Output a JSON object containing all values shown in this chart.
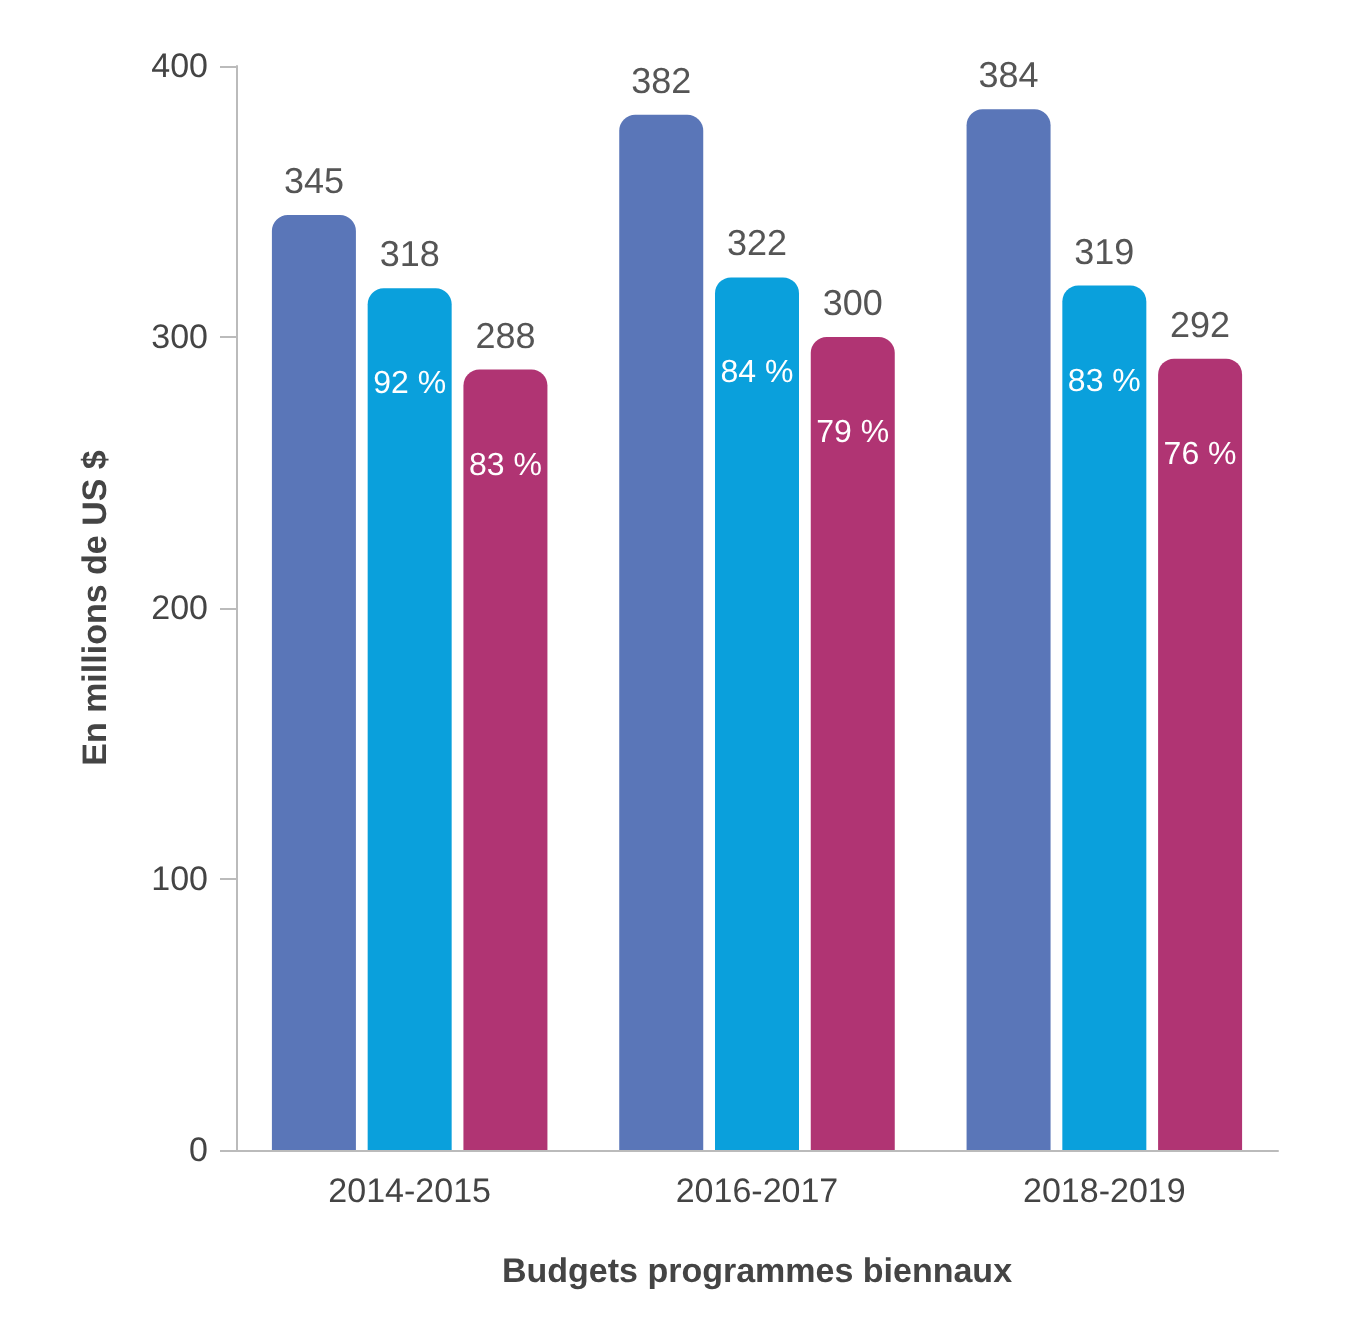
{
  "chart_data": {
    "type": "bar",
    "xlabel": "Budgets programmes biennaux",
    "ylabel": "En millions de US $",
    "categories": [
      "2014-2015",
      "2016-2017",
      "2018-2019"
    ],
    "series": [
      {
        "color": "#5a76b8",
        "values": [
          345,
          382,
          384
        ]
      },
      {
        "color": "#0aa0dc",
        "values": [
          318,
          322,
          319
        ]
      },
      {
        "color": "#b03473",
        "values": [
          288,
          300,
          292
        ]
      }
    ],
    "annotations": [
      {
        "text": "92 %",
        "x": "2014-2015",
        "y": 318
      },
      {
        "text": "84 %",
        "x": "2016-2017",
        "y": 322
      },
      {
        "text": "83 %",
        "x": "2018-2019",
        "y": 319
      },
      "83 %",
      "79 %",
      "76 %"
    ],
    "ylim": [
      0,
      400
    ],
    "yticks": [
      0,
      100,
      200,
      300,
      400
    ],
    "grid": false,
    "data_labels": true
  }
}
